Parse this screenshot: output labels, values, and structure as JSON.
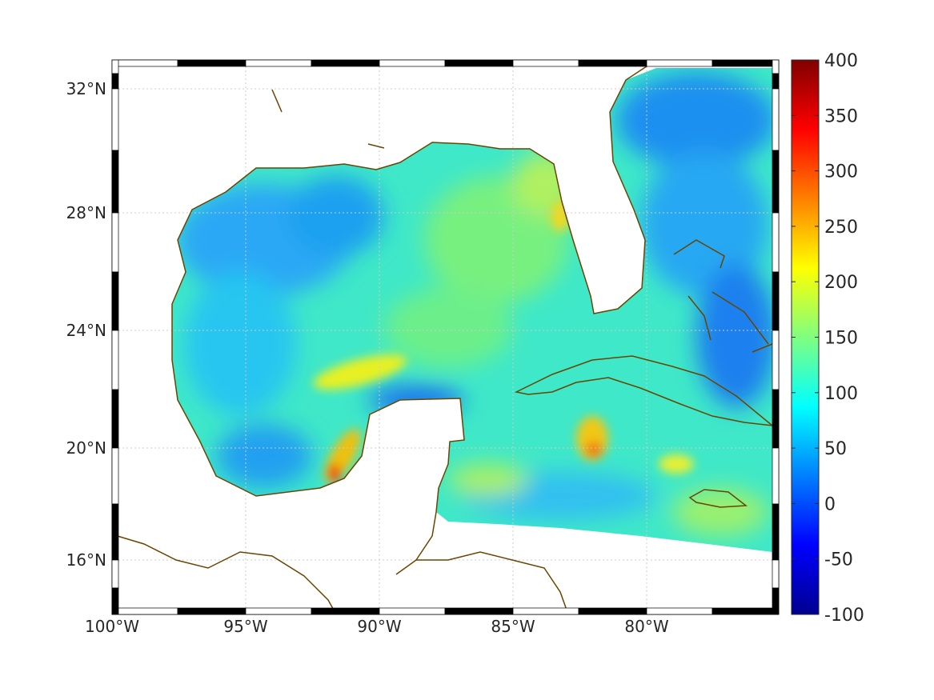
{
  "chart_data": {
    "type": "heatmap",
    "title": "",
    "region": "Gulf of Mexico and Caribbean",
    "xlabel": "",
    "ylabel": "",
    "xlim": [
      -100,
      -75
    ],
    "ylim": [
      14,
      33
    ],
    "x_ticks": [
      {
        "value": -100,
        "label": "100°W"
      },
      {
        "value": -95,
        "label": "95°W"
      },
      {
        "value": -90,
        "label": "90°W"
      },
      {
        "value": -85,
        "label": "85°W"
      },
      {
        "value": -80,
        "label": "80°W"
      }
    ],
    "y_ticks": [
      {
        "value": 32,
        "label": "32°N"
      },
      {
        "value": 28,
        "label": "28°N"
      },
      {
        "value": 24,
        "label": "24°N"
      },
      {
        "value": 20,
        "label": "20°N"
      },
      {
        "value": 16,
        "label": "16°N"
      }
    ],
    "grid": true,
    "colorbar": {
      "colormap": "jet",
      "range": [
        -100,
        400
      ],
      "ticks": [
        "400",
        "350",
        "300",
        "250",
        "200",
        "150",
        "100",
        "50",
        "0",
        "-50",
        "-100"
      ],
      "placement": "right"
    },
    "hotspots": [
      {
        "lon": -91.5,
        "lat": 19.3,
        "value": 280
      },
      {
        "lon": -82,
        "lat": 20,
        "value": 260
      },
      {
        "lon": -89,
        "lat": 22.7,
        "value": 200
      },
      {
        "lon": -80.5,
        "lat": 19.0,
        "value": 200
      }
    ],
    "typical_value_range": [
      60,
      170
    ],
    "colors": {
      "coastline": "#6b4400",
      "grid": "#cccccc"
    }
  }
}
